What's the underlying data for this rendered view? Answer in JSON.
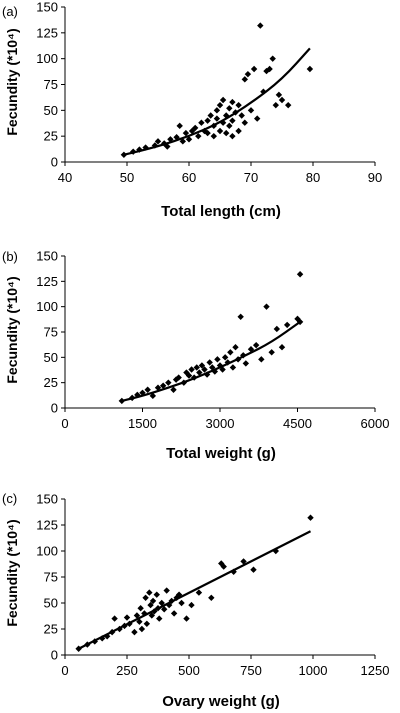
{
  "chart_data": [
    {
      "type": "scatter",
      "panel_label": "(a)",
      "xlabel": "Total length (cm)",
      "ylabel": "Fecundity (*10⁴)",
      "xlim": [
        40,
        90
      ],
      "ylim": [
        0,
        150
      ],
      "xticks": [
        "40",
        "50",
        "60",
        "70",
        "80",
        "90"
      ],
      "yticks": [
        "0",
        "25",
        "50",
        "75",
        "100",
        "125",
        "150"
      ],
      "trendline": "exponential",
      "trend_points": [
        [
          49.5,
          7
        ],
        [
          55,
          15
        ],
        [
          60,
          25
        ],
        [
          65,
          38
        ],
        [
          70,
          57
        ],
        [
          75,
          80
        ],
        [
          79.5,
          110
        ]
      ],
      "points": [
        [
          49.5,
          7
        ],
        [
          51,
          10
        ],
        [
          52,
          12
        ],
        [
          53,
          14
        ],
        [
          54.5,
          16
        ],
        [
          55,
          20
        ],
        [
          56,
          18
        ],
        [
          56.5,
          15
        ],
        [
          57,
          22
        ],
        [
          58,
          24
        ],
        [
          58.5,
          35
        ],
        [
          59,
          20
        ],
        [
          59.5,
          28
        ],
        [
          60,
          22
        ],
        [
          60.5,
          30
        ],
        [
          61,
          33
        ],
        [
          61.5,
          25
        ],
        [
          62,
          38
        ],
        [
          62.5,
          30
        ],
        [
          63,
          40
        ],
        [
          63,
          28
        ],
        [
          63.5,
          45
        ],
        [
          64,
          35
        ],
        [
          64,
          25
        ],
        [
          64.5,
          50
        ],
        [
          64.5,
          42
        ],
        [
          65,
          55
        ],
        [
          65,
          30
        ],
        [
          65.5,
          60
        ],
        [
          65.5,
          38
        ],
        [
          66,
          45
        ],
        [
          66,
          28
        ],
        [
          66.5,
          52
        ],
        [
          66.5,
          35
        ],
        [
          67,
          58
        ],
        [
          67,
          40
        ],
        [
          67,
          25
        ],
        [
          67.5,
          48
        ],
        [
          68,
          55
        ],
        [
          68,
          30
        ],
        [
          68.5,
          45
        ],
        [
          69,
          80
        ],
        [
          69,
          38
        ],
        [
          69.5,
          85
        ],
        [
          70,
          50
        ],
        [
          70.5,
          90
        ],
        [
          71,
          42
        ],
        [
          71.5,
          132
        ],
        [
          72,
          68
        ],
        [
          72.5,
          88
        ],
        [
          73,
          90
        ],
        [
          73.5,
          100
        ],
        [
          74,
          55
        ],
        [
          74.5,
          65
        ],
        [
          75,
          60
        ],
        [
          76,
          55
        ],
        [
          79.5,
          90
        ]
      ]
    },
    {
      "type": "scatter",
      "panel_label": "(b)",
      "xlabel": "Total weight (g)",
      "ylabel": "Fecundity (*10⁴)",
      "xlim": [
        0,
        6000
      ],
      "ylim": [
        0,
        150
      ],
      "xticks": [
        "0",
        "1500",
        "3000",
        "4500",
        "6000"
      ],
      "yticks": [
        "0",
        "25",
        "50",
        "75",
        "100",
        "125",
        "150"
      ],
      "trendline": "power",
      "trend_points": [
        [
          1100,
          7
        ],
        [
          1500,
          12
        ],
        [
          2000,
          20
        ],
        [
          2500,
          29
        ],
        [
          3000,
          40
        ],
        [
          3500,
          52
        ],
        [
          4000,
          65
        ],
        [
          4550,
          85
        ]
      ],
      "points": [
        [
          1100,
          7
        ],
        [
          1300,
          10
        ],
        [
          1400,
          13
        ],
        [
          1500,
          15
        ],
        [
          1600,
          18
        ],
        [
          1700,
          12
        ],
        [
          1800,
          20
        ],
        [
          1900,
          22
        ],
        [
          2000,
          25
        ],
        [
          2100,
          18
        ],
        [
          2150,
          28
        ],
        [
          2200,
          30
        ],
        [
          2300,
          25
        ],
        [
          2350,
          35
        ],
        [
          2400,
          32
        ],
        [
          2450,
          38
        ],
        [
          2500,
          30
        ],
        [
          2550,
          40
        ],
        [
          2600,
          35
        ],
        [
          2650,
          42
        ],
        [
          2700,
          38
        ],
        [
          2750,
          33
        ],
        [
          2800,
          45
        ],
        [
          2850,
          40
        ],
        [
          2900,
          36
        ],
        [
          2950,
          48
        ],
        [
          3000,
          42
        ],
        [
          3050,
          38
        ],
        [
          3100,
          50
        ],
        [
          3150,
          45
        ],
        [
          3200,
          55
        ],
        [
          3250,
          40
        ],
        [
          3300,
          60
        ],
        [
          3350,
          48
        ],
        [
          3400,
          90
        ],
        [
          3450,
          52
        ],
        [
          3500,
          44
        ],
        [
          3600,
          58
        ],
        [
          3700,
          62
        ],
        [
          3800,
          48
        ],
        [
          3900,
          100
        ],
        [
          4000,
          55
        ],
        [
          4100,
          78
        ],
        [
          4200,
          60
        ],
        [
          4300,
          82
        ],
        [
          4500,
          88
        ],
        [
          4550,
          85
        ],
        [
          4550,
          132
        ]
      ]
    },
    {
      "type": "scatter",
      "panel_label": "(c)",
      "xlabel": "Ovary weight (g)",
      "ylabel": "Fecundity (*10⁴)",
      "xlim": [
        0,
        1250
      ],
      "ylim": [
        0,
        150
      ],
      "xticks": [
        "0",
        "250",
        "500",
        "750",
        "1000",
        "1250"
      ],
      "yticks": [
        "0",
        "25",
        "50",
        "75",
        "100",
        "125",
        "150"
      ],
      "trendline": "linear",
      "trend_points": [
        [
          55,
          6
        ],
        [
          990,
          119
        ]
      ],
      "points": [
        [
          55,
          6
        ],
        [
          90,
          10
        ],
        [
          120,
          13
        ],
        [
          150,
          16
        ],
        [
          170,
          18
        ],
        [
          190,
          22
        ],
        [
          200,
          35
        ],
        [
          220,
          25
        ],
        [
          240,
          28
        ],
        [
          250,
          36
        ],
        [
          260,
          30
        ],
        [
          280,
          22
        ],
        [
          290,
          38
        ],
        [
          300,
          32
        ],
        [
          305,
          45
        ],
        [
          310,
          25
        ],
        [
          320,
          40
        ],
        [
          325,
          55
        ],
        [
          330,
          30
        ],
        [
          340,
          60
        ],
        [
          345,
          48
        ],
        [
          350,
          38
        ],
        [
          355,
          52
        ],
        [
          360,
          42
        ],
        [
          370,
          58
        ],
        [
          375,
          45
        ],
        [
          380,
          35
        ],
        [
          390,
          50
        ],
        [
          400,
          44
        ],
        [
          410,
          62
        ],
        [
          420,
          48
        ],
        [
          430,
          52
        ],
        [
          440,
          40
        ],
        [
          450,
          55
        ],
        [
          460,
          58
        ],
        [
          470,
          50
        ],
        [
          490,
          35
        ],
        [
          510,
          48
        ],
        [
          540,
          60
        ],
        [
          590,
          55
        ],
        [
          630,
          88
        ],
        [
          640,
          85
        ],
        [
          680,
          80
        ],
        [
          720,
          90
        ],
        [
          760,
          82
        ],
        [
          850,
          100
        ],
        [
          990,
          132
        ]
      ]
    }
  ]
}
